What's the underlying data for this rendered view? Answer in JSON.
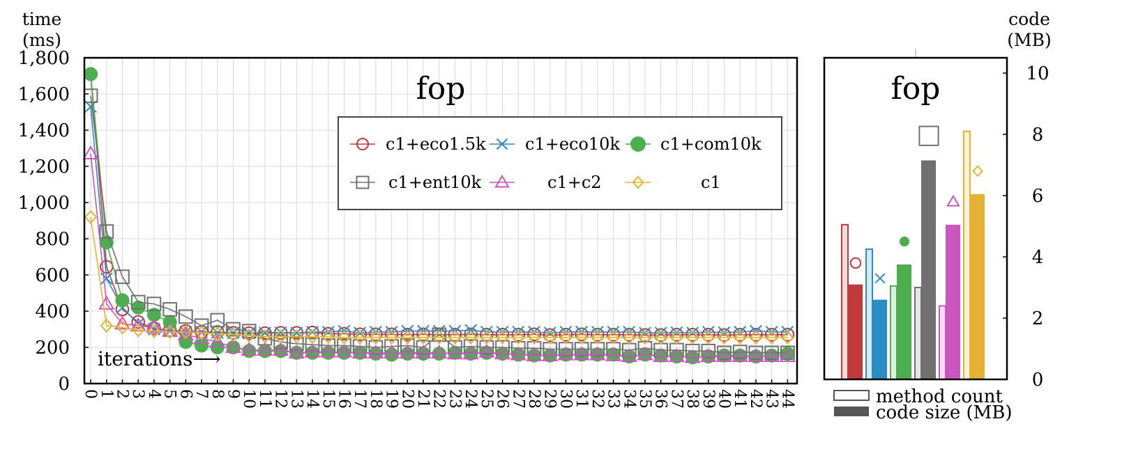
{
  "chart_data": [
    {
      "type": "line",
      "title": "fop",
      "ylabel": "time\n(ms)",
      "xlabel": "iterations⟶",
      "x": [
        0,
        1,
        2,
        3,
        4,
        5,
        6,
        7,
        8,
        9,
        10,
        11,
        12,
        13,
        14,
        15,
        16,
        17,
        18,
        19,
        20,
        21,
        22,
        23,
        24,
        25,
        26,
        27,
        28,
        29,
        30,
        31,
        32,
        33,
        34,
        35,
        36,
        37,
        38,
        39,
        40,
        41,
        42,
        43,
        44
      ],
      "xlim": [
        -0.4,
        44.6
      ],
      "ylim": [
        0,
        1800
      ],
      "yticks": [
        0,
        200,
        400,
        600,
        800,
        1000,
        1200,
        1400,
        1600,
        1800
      ],
      "ytick_labels": [
        "0",
        "200",
        "400",
        "600",
        "800",
        "1,000",
        "1,200",
        "1,400",
        "1,600",
        "1,800"
      ],
      "grid": true,
      "legend_position": "top-right",
      "series": [
        {
          "name": "c1+eco1.5k",
          "color": "#c0393b",
          "marker": "circle",
          "values": [
            1710,
            645,
            410,
            340,
            305,
            295,
            290,
            285,
            285,
            280,
            278,
            278,
            280,
            280,
            282,
            275,
            275,
            272,
            272,
            272,
            270,
            272,
            270,
            270,
            272,
            270,
            270,
            270,
            272,
            268,
            270,
            272,
            270,
            270,
            270,
            268,
            268,
            270,
            270,
            270,
            268,
            270,
            270,
            270,
            270
          ]
        },
        {
          "name": "c1+eco10k",
          "color": "#2b8cc4",
          "marker": "x",
          "values": [
            1530,
            580,
            420,
            330,
            300,
            290,
            285,
            285,
            280,
            280,
            278,
            280,
            282,
            280,
            285,
            285,
            290,
            280,
            285,
            285,
            290,
            290,
            290,
            290,
            295,
            285,
            285,
            285,
            285,
            280,
            285,
            285,
            285,
            285,
            285,
            280,
            280,
            282,
            280,
            285,
            282,
            285,
            290,
            285,
            285
          ]
        },
        {
          "name": "c1+com10k",
          "color": "#4cae4f",
          "marker": "dot",
          "values": [
            1710,
            780,
            460,
            420,
            380,
            340,
            230,
            210,
            200,
            200,
            180,
            180,
            180,
            170,
            170,
            170,
            170,
            170,
            165,
            160,
            165,
            165,
            165,
            170,
            165,
            170,
            165,
            160,
            155,
            155,
            160,
            160,
            160,
            160,
            150,
            160,
            155,
            150,
            145,
            150,
            155,
            155,
            150,
            155,
            165
          ]
        },
        {
          "name": "c1+ent10k",
          "color": "#707070",
          "marker": "square",
          "values": [
            1590,
            840,
            590,
            450,
            440,
            410,
            370,
            320,
            350,
            300,
            290,
            250,
            230,
            220,
            215,
            210,
            210,
            205,
            200,
            205,
            210,
            200,
            270,
            200,
            205,
            200,
            200,
            195,
            195,
            190,
            190,
            190,
            190,
            190,
            185,
            195,
            185,
            185,
            180,
            180,
            170,
            175,
            170,
            170,
            170
          ]
        },
        {
          "name": "c1+c2",
          "color": "#cc56c0",
          "marker": "triangle",
          "values": [
            1270,
            440,
            330,
            320,
            310,
            290,
            270,
            250,
            230,
            200,
            185,
            185,
            185,
            170,
            175,
            175,
            175,
            170,
            170,
            170,
            170,
            170,
            170,
            165,
            165,
            175,
            165,
            160,
            155,
            155,
            160,
            160,
            160,
            155,
            150,
            160,
            150,
            150,
            145,
            150,
            150,
            150,
            150,
            150,
            150
          ]
        },
        {
          "name": "c1",
          "color": "#e6b234",
          "marker": "diamond",
          "values": [
            920,
            320,
            310,
            295,
            290,
            285,
            285,
            280,
            275,
            270,
            265,
            260,
            260,
            260,
            258,
            258,
            255,
            255,
            255,
            255,
            255,
            255,
            255,
            255,
            255,
            255,
            255,
            255,
            255,
            255,
            255,
            255,
            255,
            255,
            255,
            255,
            255,
            255,
            255,
            255,
            255,
            255,
            255,
            255,
            255
          ]
        }
      ]
    },
    {
      "type": "bar",
      "title": "fop",
      "ylabel": "code\n(MB)",
      "ylim": [
        0,
        10.5
      ],
      "yticks": [
        0,
        2,
        4,
        6,
        8,
        10
      ],
      "series_note_legend": [
        "method count",
        "code size (MB)"
      ],
      "legend_position": "bottom",
      "categories": [
        "c1+eco1.5k",
        "c1+eco10k",
        "c1+com10k",
        "c1+ent10k",
        "c1+c2",
        "c1"
      ],
      "colors": [
        "#c0393b",
        "#2b8cc4",
        "#4cae4f",
        "#707070",
        "#cc56c0",
        "#e6b234"
      ],
      "markers": [
        "circle",
        "x",
        "dot",
        "square",
        "triangle",
        "diamond"
      ],
      "method_count_relative": [
        5.05,
        4.25,
        3.05,
        3.0,
        2.4,
        8.1
      ],
      "code_size_mb": [
        3.1,
        2.6,
        3.75,
        7.15,
        5.05,
        6.05
      ],
      "marker_values": [
        3.8,
        3.3,
        4.5,
        7.95,
        5.8,
        6.8
      ]
    }
  ]
}
